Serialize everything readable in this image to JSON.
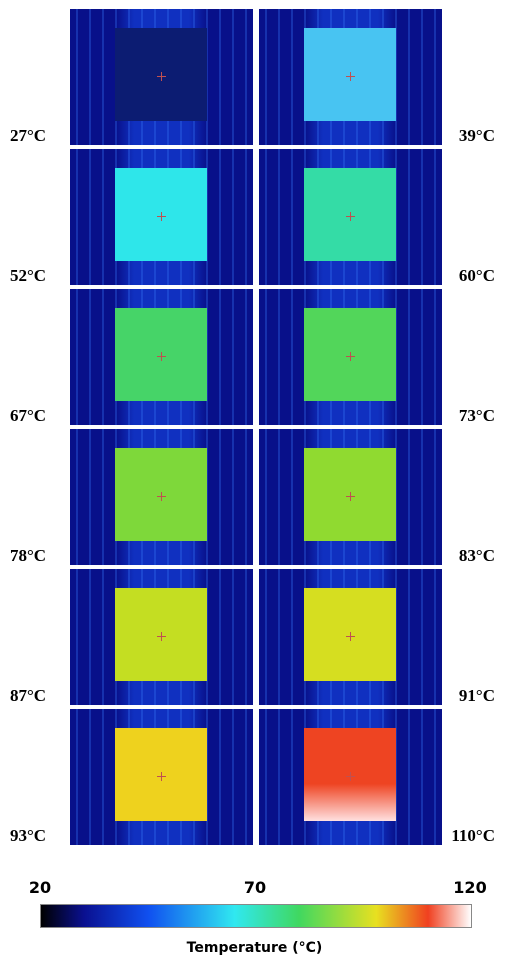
{
  "panels": [
    {
      "label": "27°C",
      "color": "#0c1c72"
    },
    {
      "label": "39°C",
      "color": "#48c4f2"
    },
    {
      "label": "52°C",
      "color": "#2ee6ea"
    },
    {
      "label": "60°C",
      "color": "#34dca6"
    },
    {
      "label": "67°C",
      "color": "#46d468"
    },
    {
      "label": "73°C",
      "color": "#52d65a"
    },
    {
      "label": "78°C",
      "color": "#7ed83a"
    },
    {
      "label": "83°C",
      "color": "#90da30"
    },
    {
      "label": "87°C",
      "color": "#c4de22"
    },
    {
      "label": "91°C",
      "color": "#d6de20"
    },
    {
      "label": "93°C",
      "color": "#eed21e"
    },
    {
      "label": "110°C",
      "color": "#ee4422"
    }
  ],
  "colorbar": {
    "ticks": [
      20,
      70,
      120
    ],
    "title": "Temperature (°C)"
  }
}
